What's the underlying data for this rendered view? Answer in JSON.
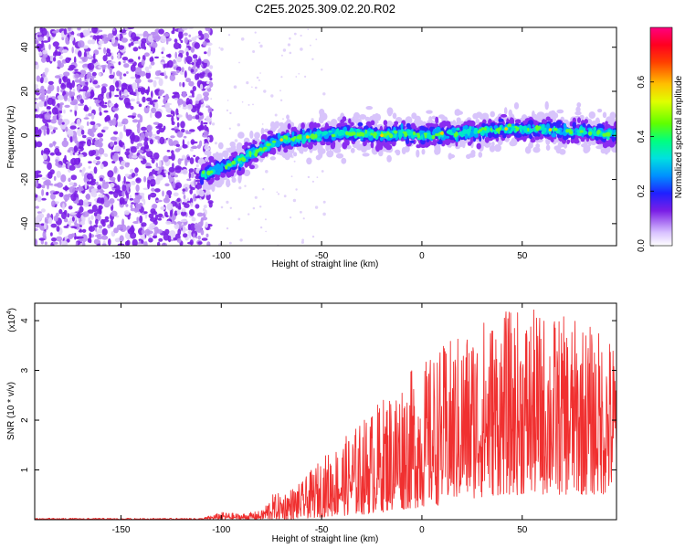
{
  "figure_title": "C2E5.2025.309.02.20.R02",
  "chart_data": [
    {
      "type": "heatmap",
      "title": "C2E5.2025.309.02.20.R02",
      "xlabel": "Height of straight line (km)",
      "ylabel": "Frequency (Hz)",
      "xlim": [
        -193,
        97
      ],
      "ylim": [
        -50,
        49
      ],
      "xticks": [
        -150,
        -100,
        -50,
        0,
        50
      ],
      "yticks": [
        -40,
        -20,
        0,
        20,
        40
      ],
      "xtick_labels": [
        "-150",
        "-100",
        "-50",
        "0",
        "50"
      ],
      "ytick_labels": [
        "-40",
        "-20",
        "0",
        "20",
        "40"
      ],
      "ridge": {
        "description": "Frequency of strongest spectral amplitude versus height",
        "x": [
          -110,
          -100,
          -90,
          -80,
          -70,
          -60,
          -50,
          -40,
          -30,
          -20,
          -10,
          0,
          10,
          20,
          30,
          40,
          50,
          60,
          70,
          80,
          90,
          97
        ],
        "y": [
          -18,
          -15,
          -11,
          -6,
          -2,
          -1,
          0,
          1,
          1,
          0,
          1,
          0,
          1,
          1,
          2,
          3,
          3,
          3,
          2,
          2,
          1,
          0
        ]
      },
      "noise_region_x": [
        -193,
        -108
      ],
      "colorbar": {
        "label": "Normalized spectral amplitude",
        "range": [
          0.0,
          0.8
        ],
        "ticks": [
          0.0,
          0.2,
          0.4,
          0.6
        ],
        "tick_labels": [
          "0.0",
          "0.2",
          "0.4",
          "0.6"
        ]
      }
    },
    {
      "type": "line",
      "xlabel": "Height of straight line (km)",
      "ylabel": "SNR (10 * v/v)",
      "scale_label": "(x10",
      "scale_exponent": "4",
      "scale_suffix": ")",
      "xlim": [
        -193,
        97
      ],
      "ylim": [
        0,
        4.35
      ],
      "xticks": [
        -150,
        -100,
        -50,
        0,
        50
      ],
      "yticks": [
        1,
        2,
        3,
        4
      ],
      "xtick_labels": [
        "-150",
        "-100",
        "-50",
        "0",
        "50"
      ],
      "ytick_labels": [
        "1",
        "2",
        "3",
        "4"
      ],
      "series": [
        {
          "name": "SNR",
          "color": "#f03030",
          "envelope_x": [
            -193,
            -110,
            -100,
            -90,
            -80,
            -75,
            -70,
            -60,
            -50,
            -40,
            -30,
            -20,
            -10,
            0,
            10,
            20,
            30,
            40,
            50,
            60,
            70,
            80,
            90,
            97
          ],
          "envelope_max": [
            0.03,
            0.03,
            0.15,
            0.12,
            0.18,
            0.5,
            0.55,
            0.75,
            1.25,
            1.6,
            2.0,
            2.45,
            2.9,
            3.15,
            3.5,
            3.8,
            4.1,
            4.2,
            4.25,
            4.2,
            4.1,
            4.0,
            3.8,
            3.7
          ],
          "envelope_min": [
            0.0,
            0.0,
            0.0,
            0.0,
            0.0,
            0.0,
            0.0,
            0.02,
            0.05,
            0.08,
            0.1,
            0.15,
            0.2,
            0.25,
            0.3,
            0.4,
            0.45,
            0.5,
            0.5,
            0.5,
            0.5,
            0.5,
            0.5,
            0.5
          ]
        }
      ]
    }
  ],
  "colors": {
    "noise": "#7a1ee6",
    "line": "#f03030",
    "axis": "#000000"
  }
}
